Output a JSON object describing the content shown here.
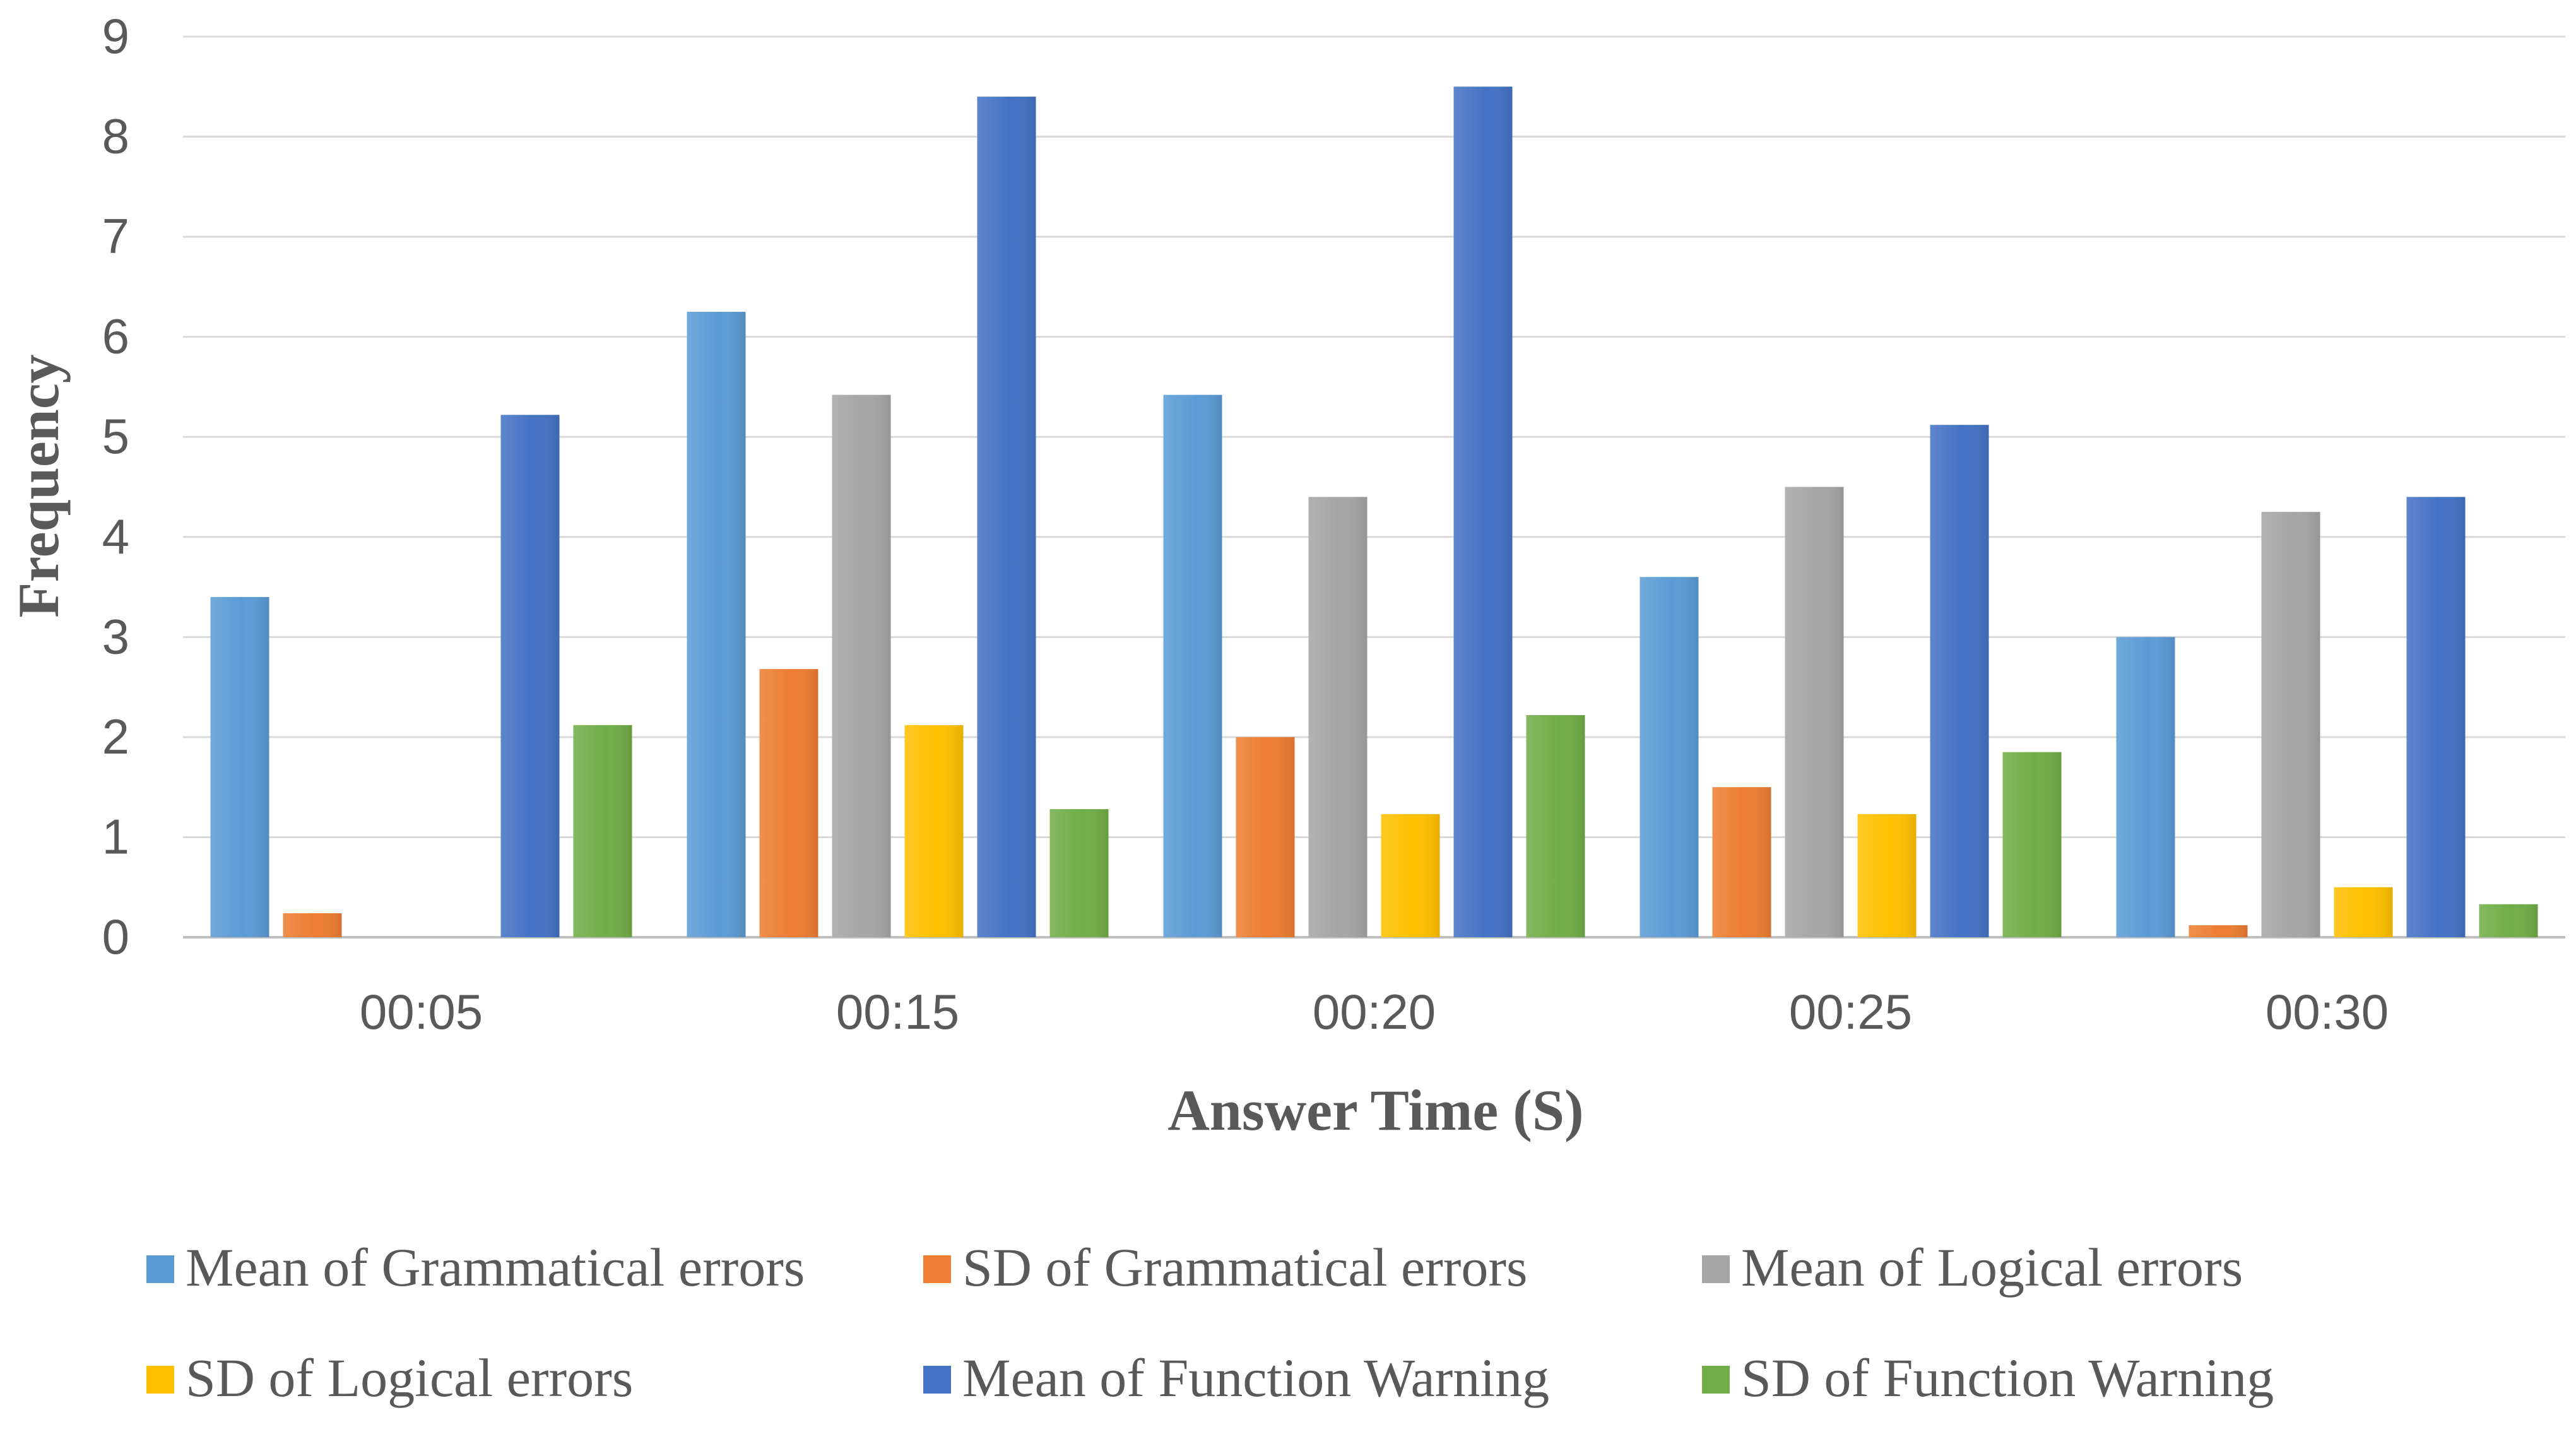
{
  "chart_data": {
    "type": "bar",
    "title": "",
    "xlabel": "Answer Time (S)",
    "ylabel": "Frequency",
    "ylim": [
      0,
      9
    ],
    "yticks": [
      "0",
      "1",
      "2",
      "3",
      "4",
      "5",
      "6",
      "7",
      "8",
      "9"
    ],
    "grid": true,
    "legend_position": "bottom",
    "categories": [
      "00:05",
      "00:15",
      "00:20",
      "00:25",
      "00:30"
    ],
    "series": [
      {
        "name": "Mean of Grammatical errors",
        "color": "#5B9BD5",
        "values": [
          3.4,
          6.25,
          5.42,
          3.6,
          3.0
        ]
      },
      {
        "name": "SD of Grammatical errors",
        "color": "#ED7D31",
        "values": [
          0.24,
          2.68,
          2.0,
          1.5,
          0.12
        ]
      },
      {
        "name": "Mean of Logical errors",
        "color": "#A5A5A5",
        "values": [
          0,
          5.42,
          4.4,
          4.5,
          4.25
        ]
      },
      {
        "name": "SD of Logical errors",
        "color": "#FFC000",
        "values": [
          0,
          2.12,
          1.23,
          1.23,
          0.5
        ]
      },
      {
        "name": "Mean of Function Warning",
        "color": "#4472C4",
        "values": [
          5.22,
          8.4,
          8.5,
          5.12,
          4.4
        ]
      },
      {
        "name": "SD of Function Warning",
        "color": "#70AD47",
        "values": [
          2.12,
          1.28,
          2.22,
          1.85,
          0.33
        ]
      }
    ]
  }
}
